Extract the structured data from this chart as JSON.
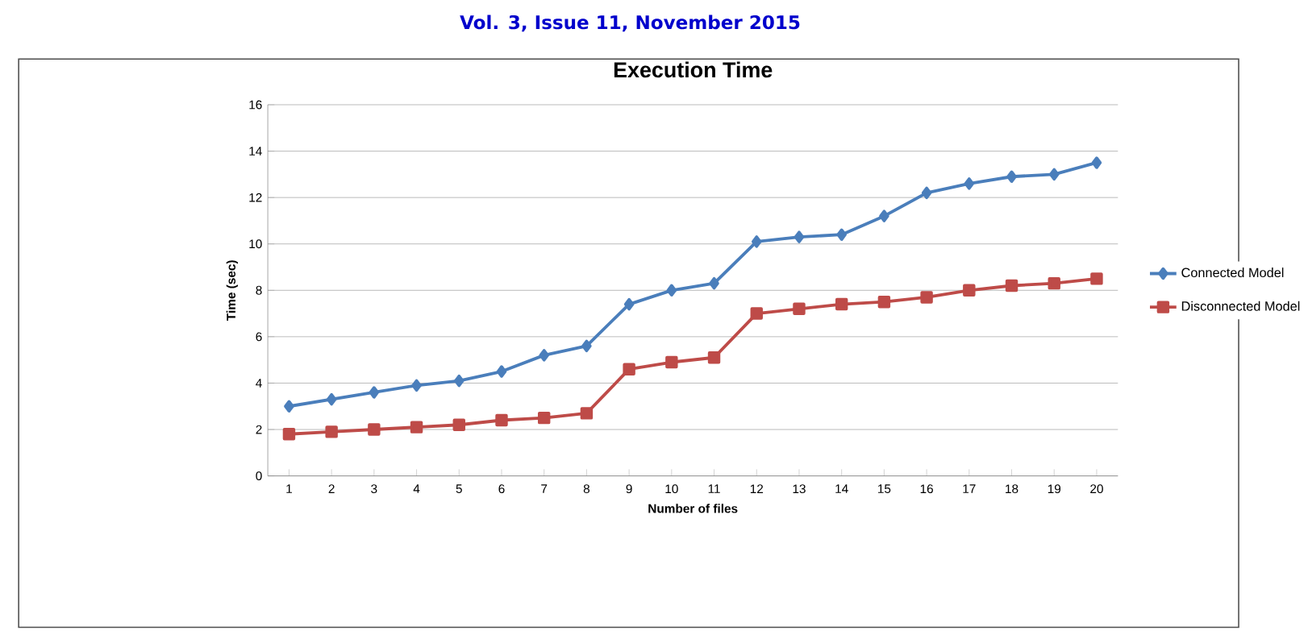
{
  "chart_data": {
    "type": "line",
    "title": "Execution Time",
    "xlabel": "Number of files",
    "ylabel": "Time (sec)",
    "annotations": [
      "Vol. 3, Issue 11, November 2015"
    ],
    "categories": [
      "1",
      "2",
      "3",
      "4",
      "5",
      "6",
      "7",
      "8",
      "9",
      "10",
      "11",
      "12",
      "13",
      "14",
      "15",
      "16",
      "17",
      "18",
      "19",
      "20"
    ],
    "series": [
      {
        "name": "Connected Model",
        "color": "#4a7ebb",
        "marker": "diamond",
        "values": [
          3.0,
          3.3,
          3.6,
          3.9,
          4.1,
          4.5,
          5.2,
          5.6,
          7.4,
          8.0,
          8.3,
          10.1,
          10.3,
          10.4,
          11.2,
          12.2,
          12.6,
          12.9,
          13.0,
          13.5
        ]
      },
      {
        "name": "Disconnected Model",
        "color": "#be4b48",
        "marker": "square",
        "values": [
          1.8,
          1.9,
          2.0,
          2.1,
          2.2,
          2.4,
          2.5,
          2.7,
          4.6,
          4.9,
          5.1,
          7.0,
          7.2,
          7.4,
          7.5,
          7.7,
          8.0,
          8.2,
          8.3,
          8.5
        ]
      }
    ],
    "ylim": [
      0,
      16
    ],
    "yticks": [
      0,
      2,
      4,
      6,
      8,
      10,
      12,
      14,
      16
    ],
    "grid": "y",
    "legend": "right",
    "line_style": "solid"
  }
}
